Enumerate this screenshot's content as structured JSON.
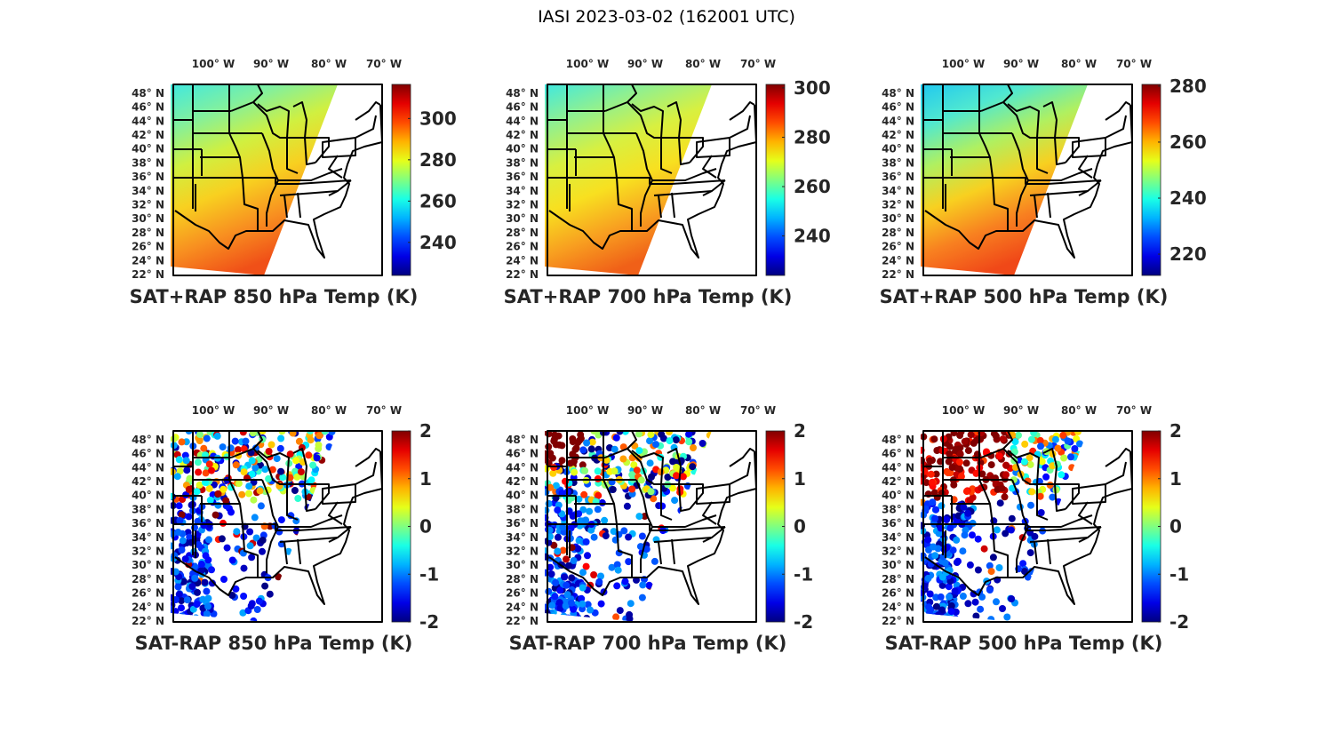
{
  "figure_title": "IASI 2023-03-02 (162001 UTC)",
  "lon_labels": [
    "100",
    "90",
    "80",
    "70"
  ],
  "lon_hemisphere": "W",
  "lat_labels": [
    "48",
    "46",
    "44",
    "42",
    "40",
    "38",
    "36",
    "34",
    "32",
    "30",
    "28",
    "26",
    "24",
    "22"
  ],
  "lat_hemisphere": "N",
  "degree_symbol": "°",
  "panels": [
    {
      "title": "SAT+RAP 850 hPa Temp (K)",
      "kind": "field",
      "clim": [
        224,
        316.5
      ],
      "ticks": [
        "240",
        "260",
        "280",
        "300"
      ],
      "tick_values": [
        240,
        260,
        280,
        300
      ],
      "gradient": [
        "#40e8e0",
        "#80f0a0",
        "#d0f040",
        "#f8d020",
        "#f89020",
        "#f05018"
      ]
    },
    {
      "title": "SAT+RAP 700 hPa Temp (K)",
      "kind": "field",
      "clim": [
        224,
        301.4
      ],
      "ticks": [
        "240",
        "260",
        "280",
        "300"
      ],
      "tick_values": [
        240,
        260,
        280,
        300
      ],
      "gradient": [
        "#40e8e0",
        "#90f090",
        "#d8f040",
        "#f8e020",
        "#f8a020",
        "#f06018"
      ]
    },
    {
      "title": "SAT+RAP 500 hPa Temp (K)",
      "kind": "field",
      "clim": [
        212.4,
        280.6
      ],
      "ticks": [
        "220",
        "240",
        "260",
        "280"
      ],
      "tick_values": [
        220,
        240,
        260,
        280
      ],
      "gradient": [
        "#20c8f0",
        "#50e8d0",
        "#b0f060",
        "#f8d020",
        "#f88020",
        "#f04818"
      ]
    },
    {
      "title": "SAT-RAP 850 hPa Temp (K)",
      "kind": "diff",
      "clim": [
        -2,
        2
      ],
      "ticks": [
        "-2",
        "-1",
        "0",
        "1",
        "2"
      ],
      "tick_values": [
        -2,
        -1,
        0,
        1,
        2
      ]
    },
    {
      "title": "SAT-RAP 700 hPa Temp (K)",
      "kind": "diff",
      "clim": [
        -2,
        2
      ],
      "ticks": [
        "-2",
        "-1",
        "0",
        "1",
        "2"
      ],
      "tick_values": [
        -2,
        -1,
        0,
        1,
        2
      ]
    },
    {
      "title": "SAT-RAP 500 hPa Temp (K)",
      "kind": "diff",
      "clim": [
        -2,
        2
      ],
      "ticks": [
        "-2",
        "-1",
        "0",
        "1",
        "2"
      ],
      "tick_values": [
        -2,
        -1,
        0,
        1,
        2
      ]
    }
  ],
  "colormap": "jet"
}
